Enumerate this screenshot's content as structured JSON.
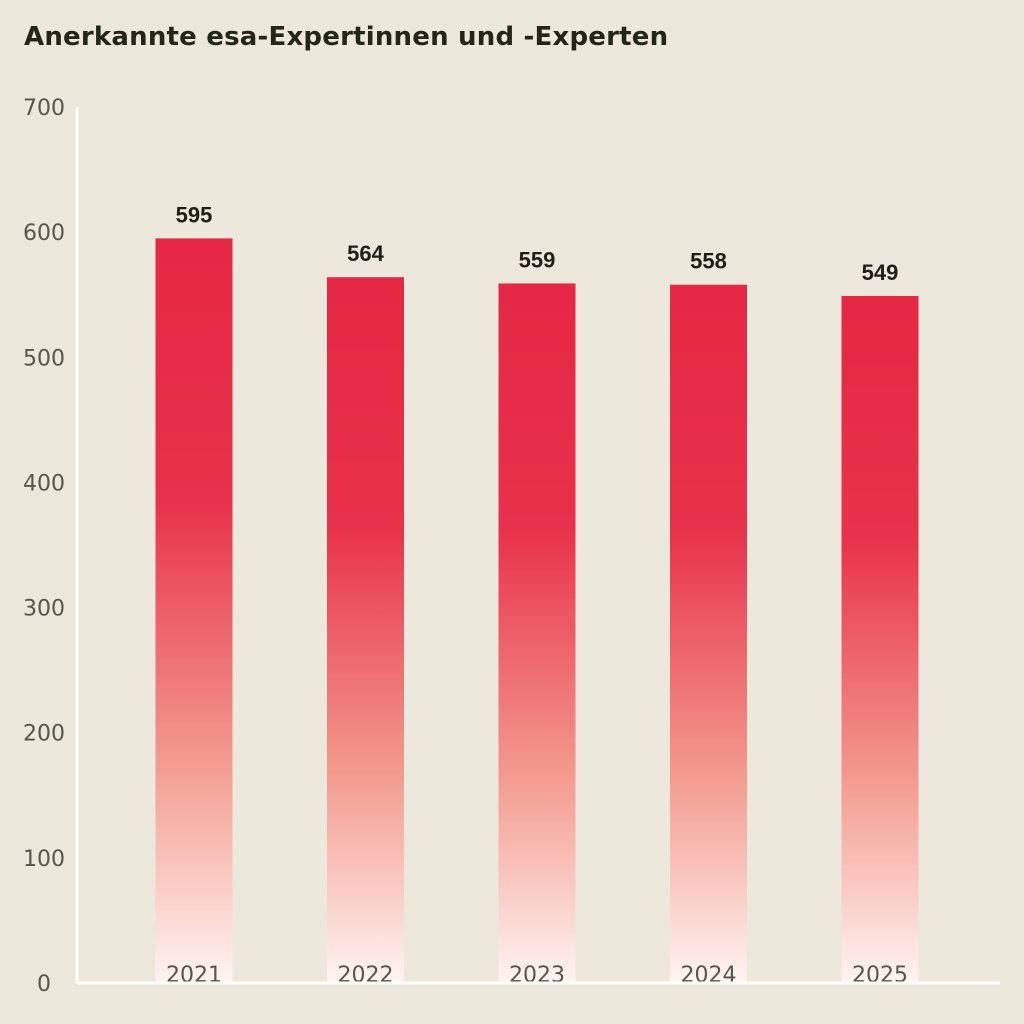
{
  "chart_data": {
    "type": "bar",
    "title": "Anerkannte esa-Expertinnen und -Experten",
    "categories": [
      "2021",
      "2022",
      "2023",
      "2024",
      "2025"
    ],
    "values": [
      595,
      564,
      559,
      558,
      549
    ],
    "data_labels": [
      "595",
      "564",
      "559",
      "558",
      "549"
    ],
    "ylim": [
      0,
      700
    ],
    "yticks": [
      0,
      100,
      200,
      300,
      400,
      500,
      600,
      700
    ],
    "xlabel": "",
    "ylabel": "",
    "grid": false,
    "legend": "none",
    "colors": {
      "bar_top": "#e52843",
      "bar_mid": "#e8314a",
      "bar_bottom": "#fff4f1",
      "axis": "#ffffff",
      "background": "#ece9dc"
    }
  }
}
